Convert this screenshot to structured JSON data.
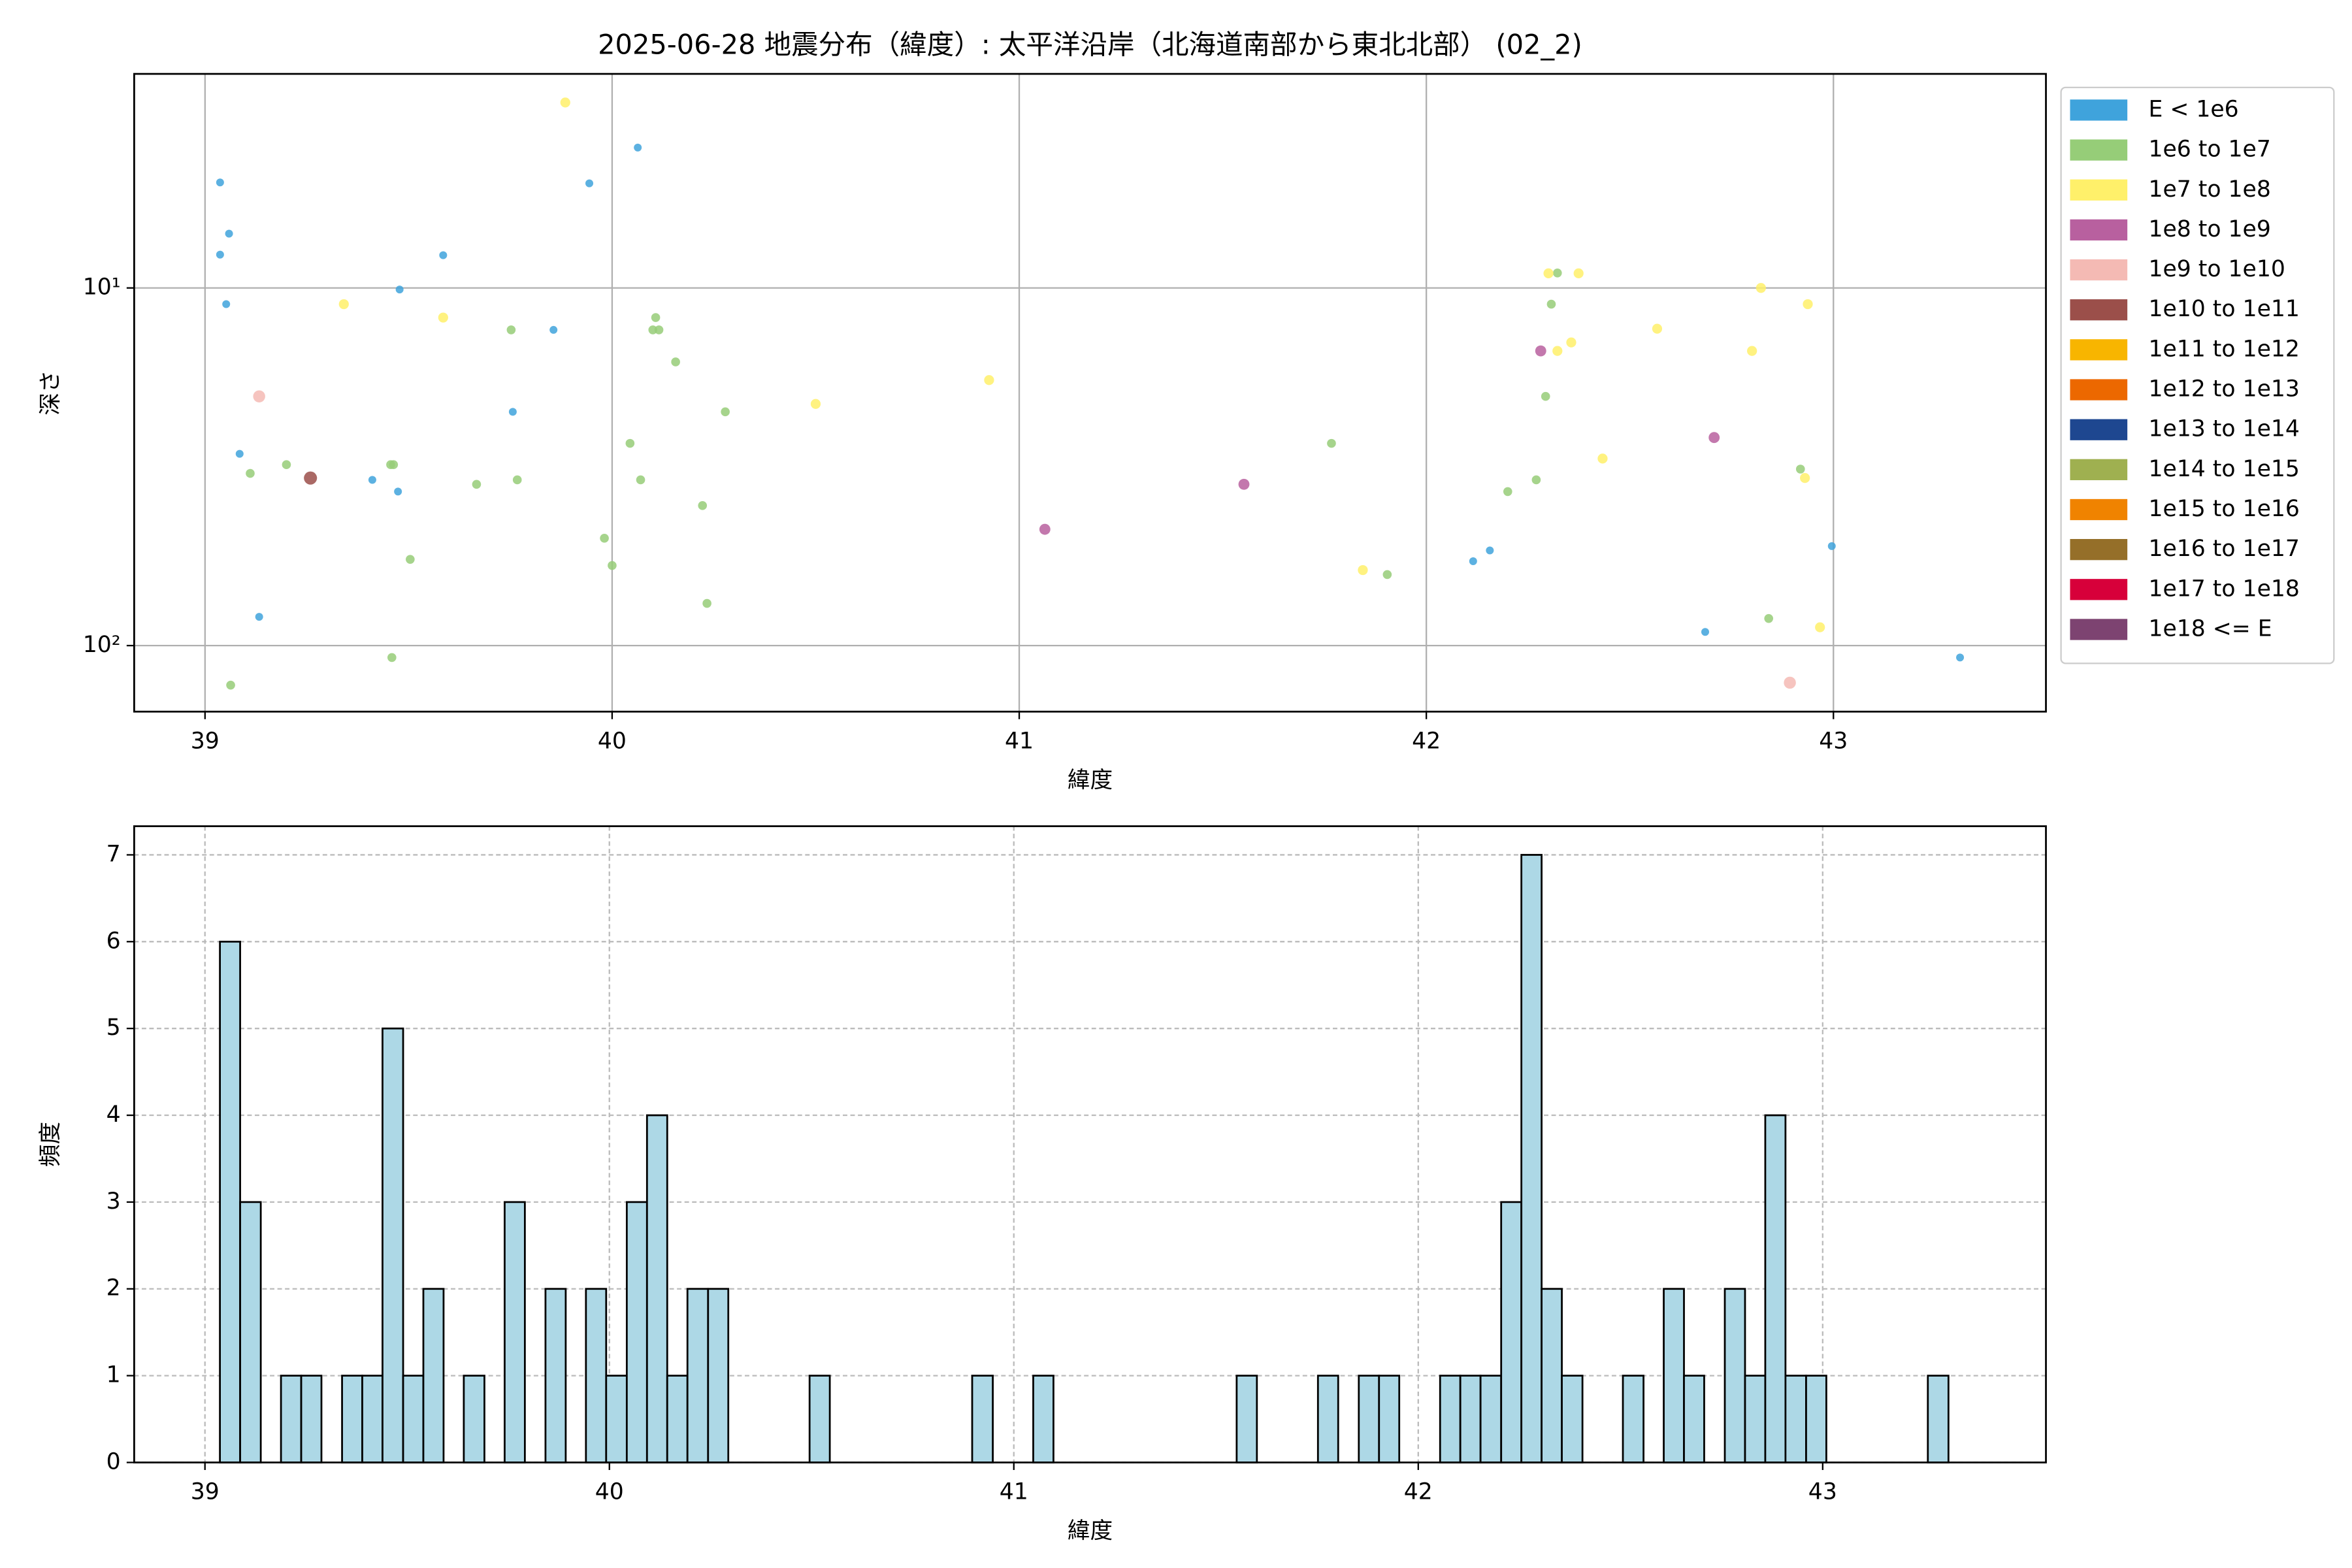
{
  "chart_data": [
    {
      "type": "scatter",
      "title": "2025-06-28 地震分布（緯度）: 太平洋沿岸（北海道南部から東北北部） (02_2)",
      "xlabel": "緯度",
      "ylabel": "深さ",
      "xlim": [
        38.826,
        43.522
      ],
      "xticks": [
        39,
        40,
        41,
        42,
        43
      ],
      "ylim": [
        2.52,
        153
      ],
      "ylog": true,
      "y_inverted": true,
      "yticks": [
        {
          "value": 10,
          "label": "10¹"
        },
        {
          "value": 100,
          "label": "10²"
        }
      ],
      "grid": true,
      "grid_linestyle": "solid",
      "legend": "outside right",
      "series": [
        {
          "name": "E < 1e6",
          "color": "#3fa3dc",
          "x": [
            39.037,
            39.059,
            39.037,
            39.052,
            39.085,
            39.133,
            39.411,
            39.474,
            39.478,
            39.585,
            39.756,
            39.856,
            39.944,
            40.063,
            42.115,
            42.156,
            42.685,
            42.996,
            43.311
          ],
          "values": [
            5.07,
            7.05,
            8.07,
            11.1,
            29.1,
            83.1,
            34.4,
            37.1,
            10.1,
            8.1,
            22.2,
            13.1,
            5.1,
            4.05,
            58.1,
            54.2,
            91.6,
            52.7,
            108
          ]
        },
        {
          "name": "1e6 to 1e7",
          "color": "#96cd78",
          "x": [
            39.111,
            39.2,
            39.456,
            39.463,
            39.504,
            39.459,
            39.063,
            39.667,
            39.752,
            39.767,
            39.981,
            40.0,
            40.044,
            40.07,
            40.1,
            40.107,
            40.115,
            40.156,
            40.222,
            40.233,
            40.278,
            41.767,
            41.904,
            42.2,
            42.27,
            42.293,
            42.307,
            42.322,
            42.841,
            42.919
          ],
          "values": [
            33.0,
            31.2,
            31.2,
            31.2,
            57.4,
            108,
            129,
            35.4,
            13.1,
            34.4,
            50.1,
            59.7,
            27.2,
            34.4,
            13.1,
            12.1,
            13.1,
            16.1,
            40.6,
            76.2,
            22.2,
            27.2,
            63.3,
            37.1,
            34.4,
            20.1,
            11.1,
            9.08,
            84.0,
            32.1
          ]
        },
        {
          "name": "1e7 to 1e8",
          "color": "#fff06a",
          "x": [
            39.885,
            39.341,
            39.585,
            40.5,
            40.926,
            41.844,
            42.3,
            42.322,
            42.356,
            42.374,
            42.433,
            42.567,
            42.8,
            42.822,
            42.93,
            42.937,
            42.967
          ],
          "values": [
            3.03,
            11.1,
            12.1,
            21.1,
            18.1,
            61.5,
            9.1,
            15.0,
            14.2,
            9.1,
            30.0,
            13.0,
            15.0,
            10.0,
            34.0,
            11.1,
            88.9
          ]
        },
        {
          "name": "1e8 to 1e9",
          "color": "#b8609f",
          "x": [
            41.063,
            41.552,
            42.707,
            42.281
          ],
          "values": [
            47.3,
            35.4,
            26.2,
            15.0
          ]
        },
        {
          "name": "1e9 to 1e10",
          "color": "#f4bab4",
          "x": [
            39.133,
            42.893
          ],
          "values": [
            20.1,
            127
          ]
        },
        {
          "name": "1e10 to 1e11",
          "color": "#9b4f4a",
          "x": [
            39.259
          ],
          "values": [
            34.0
          ]
        },
        {
          "name": "1e11 to 1e12",
          "color": "#f8b500",
          "x": [],
          "values": []
        },
        {
          "name": "1e12 to 1e13",
          "color": "#ec6800",
          "x": [],
          "values": []
        },
        {
          "name": "1e13 to 1e14",
          "color": "#1e4790",
          "x": [],
          "values": []
        },
        {
          "name": "1e14 to 1e15",
          "color": "#9fb050",
          "x": [],
          "values": []
        },
        {
          "name": "1e15 to 1e16",
          "color": "#f08300",
          "x": [],
          "values": []
        },
        {
          "name": "1e16 to 1e17",
          "color": "#956f29",
          "x": [],
          "values": []
        },
        {
          "name": "1e17 to 1e18",
          "color": "#d7003a",
          "x": [],
          "values": []
        },
        {
          "name": "1e18 <= E",
          "color": "#7d4371",
          "x": [],
          "values": []
        }
      ]
    },
    {
      "type": "histogram",
      "xlabel": "緯度",
      "ylabel": "頻度",
      "xlim": [
        38.825,
        43.552
      ],
      "xticks": [
        39,
        40,
        41,
        42,
        43
      ],
      "ylim": [
        0,
        7.33
      ],
      "yticks": [
        0,
        1,
        2,
        3,
        4,
        5,
        6,
        7
      ],
      "grid": true,
      "grid_linestyle": "dashed",
      "color": "#add8e6",
      "edgecolor": "#000000",
      "bins": [
        39.037,
        39.087,
        39.138,
        39.188,
        39.238,
        39.288,
        39.339,
        39.389,
        39.439,
        39.49,
        39.54,
        39.59,
        39.64,
        39.691,
        39.741,
        39.791,
        39.842,
        39.892,
        39.942,
        39.992,
        40.043,
        40.093,
        40.143,
        40.193,
        40.244,
        40.294,
        40.344,
        40.395,
        40.445,
        40.495,
        40.545,
        40.596,
        40.646,
        40.696,
        40.747,
        40.797,
        40.847,
        40.897,
        40.948,
        40.998,
        41.048,
        41.098,
        41.149,
        41.199,
        41.249,
        41.3,
        41.35,
        41.4,
        41.45,
        41.501,
        41.551,
        41.601,
        41.652,
        41.702,
        41.752,
        41.802,
        41.853,
        41.903,
        41.953,
        42.004,
        42.054,
        42.104,
        42.154,
        42.205,
        42.255,
        42.305,
        42.355,
        42.406,
        42.456,
        42.506,
        42.557,
        42.607,
        42.657,
        42.707,
        42.758,
        42.808,
        42.858,
        42.908,
        42.959,
        43.009,
        43.059,
        43.11,
        43.16,
        43.21,
        43.26,
        43.311
      ],
      "values": [
        6,
        3,
        0,
        1,
        1,
        0,
        1,
        1,
        5,
        1,
        2,
        0,
        1,
        0,
        3,
        0,
        2,
        0,
        2,
        1,
        3,
        4,
        1,
        2,
        2,
        0,
        0,
        0,
        0,
        1,
        0,
        0,
        0,
        0,
        0,
        0,
        0,
        1,
        0,
        0,
        1,
        0,
        0,
        0,
        0,
        0,
        0,
        0,
        0,
        0,
        1,
        0,
        0,
        0,
        1,
        0,
        1,
        1,
        0,
        0,
        1,
        1,
        1,
        3,
        7,
        2,
        1,
        0,
        0,
        1,
        0,
        2,
        1,
        0,
        2,
        1,
        4,
        1,
        1,
        0,
        0,
        0,
        0,
        0,
        1
      ]
    }
  ]
}
